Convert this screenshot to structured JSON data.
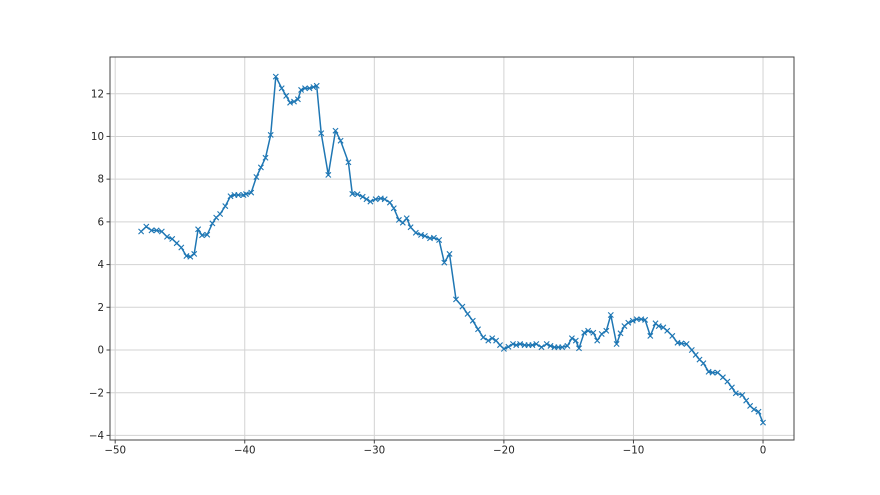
{
  "figure": {
    "background": "#ffffff",
    "grid_color": "#d3d3d3",
    "spine_color": "#454545",
    "tick_color": "#454545",
    "tick_label_color": "#262626",
    "tick_label_size": 10.3
  },
  "chart_data": {
    "type": "line",
    "title": "",
    "xlabel": "",
    "ylabel": "",
    "grid": true,
    "legend": false,
    "xlim": [
      -50.4,
      2.39
    ],
    "ylim": [
      -4.215,
      13.72
    ],
    "x_ticks": [
      -50,
      -40,
      -30,
      -20,
      -10,
      0
    ],
    "x_tick_labels": [
      "−50",
      "−40",
      "−30",
      "−20",
      "−10",
      "0"
    ],
    "y_ticks": [
      -4,
      -2,
      0,
      2,
      4,
      6,
      8,
      10,
      12
    ],
    "y_tick_labels": [
      "−4",
      "−2",
      "0",
      "2",
      "4",
      "6",
      "8",
      "10",
      "12"
    ],
    "series": [
      {
        "name": "series-1",
        "color": "#1f77b4",
        "marker": "x",
        "line_width": 1.5,
        "x": [
          -48.0,
          -47.6,
          -47.2,
          -46.8,
          -46.4,
          -46.0,
          -45.6,
          -45.25,
          -44.9,
          -44.5,
          -44.2,
          -43.9,
          -43.6,
          -43.3,
          -42.9,
          -42.5,
          -42.2,
          -41.9,
          -41.5,
          -41.1,
          -40.8,
          -40.5,
          -40.1,
          -39.9,
          -39.5,
          -39.1,
          -38.75,
          -38.4,
          -38.0,
          -37.6,
          -37.15,
          -36.8,
          -36.5,
          -36.2,
          -35.9,
          -35.65,
          -35.35,
          -35.0,
          -34.7,
          -34.45,
          -34.1,
          -33.55,
          -33.0,
          -32.6,
          -32.0,
          -31.7,
          -31.3,
          -30.9,
          -30.6,
          -30.3,
          -29.9,
          -29.5,
          -29.2,
          -28.8,
          -28.5,
          -28.1,
          -27.8,
          -27.5,
          -27.2,
          -26.8,
          -26.4,
          -26.1,
          -25.7,
          -25.4,
          -25.0,
          -24.6,
          -24.2,
          -23.7,
          -23.2,
          -22.8,
          -22.4,
          -22.0,
          -21.6,
          -21.2,
          -20.9,
          -20.6,
          -20.3,
          -20.0,
          -19.65,
          -19.3,
          -19.05,
          -18.75,
          -18.4,
          -18.1,
          -17.8,
          -17.5,
          -17.1,
          -16.7,
          -16.4,
          -16.1,
          -15.8,
          -15.5,
          -15.1,
          -14.75,
          -14.45,
          -14.2,
          -13.8,
          -13.5,
          -13.1,
          -12.8,
          -12.45,
          -12.1,
          -11.75,
          -11.3,
          -11.0,
          -10.7,
          -10.4,
          -10.05,
          -9.75,
          -9.4,
          -9.1,
          -8.7,
          -8.3,
          -8.05,
          -7.7,
          -7.4,
          -7.0,
          -6.6,
          -6.3,
          -5.9,
          -5.5,
          -5.2,
          -4.9,
          -4.6,
          -4.2,
          -3.9,
          -3.5,
          -3.1,
          -2.75,
          -2.4,
          -2.1,
          -1.6,
          -1.3,
          -1.0,
          -0.7,
          -0.35,
          0.0
        ],
        "y": [
          5.55,
          5.78,
          5.6,
          5.6,
          5.55,
          5.3,
          5.2,
          5.0,
          4.8,
          4.4,
          4.37,
          4.5,
          5.65,
          5.37,
          5.4,
          5.93,
          6.2,
          6.37,
          6.74,
          7.2,
          7.26,
          7.26,
          7.26,
          7.3,
          7.37,
          8.1,
          8.55,
          9.0,
          10.07,
          12.8,
          12.26,
          11.9,
          11.58,
          11.63,
          11.74,
          12.18,
          12.26,
          12.26,
          12.31,
          12.37,
          10.15,
          8.2,
          10.27,
          9.8,
          8.79,
          7.31,
          7.29,
          7.18,
          7.06,
          6.95,
          7.06,
          7.1,
          7.06,
          6.9,
          6.64,
          6.09,
          5.96,
          6.17,
          5.75,
          5.49,
          5.39,
          5.34,
          5.23,
          5.26,
          5.15,
          4.09,
          4.5,
          2.37,
          2.03,
          1.69,
          1.37,
          0.97,
          0.59,
          0.44,
          0.55,
          0.44,
          0.23,
          0.05,
          0.15,
          0.28,
          0.23,
          0.28,
          0.23,
          0.23,
          0.23,
          0.28,
          0.13,
          0.28,
          0.19,
          0.13,
          0.13,
          0.13,
          0.19,
          0.55,
          0.44,
          0.08,
          0.81,
          0.9,
          0.81,
          0.44,
          0.75,
          0.9,
          1.64,
          0.28,
          0.78,
          1.12,
          1.28,
          1.37,
          1.44,
          1.44,
          1.41,
          0.66,
          1.25,
          1.12,
          1.06,
          0.9,
          0.66,
          0.34,
          0.31,
          0.28,
          0.0,
          -0.23,
          -0.45,
          -0.62,
          -1.02,
          -1.06,
          -1.06,
          -1.28,
          -1.48,
          -1.75,
          -2.03,
          -2.11,
          -2.37,
          -2.62,
          -2.78,
          -2.89,
          -3.4
        ]
      }
    ]
  }
}
